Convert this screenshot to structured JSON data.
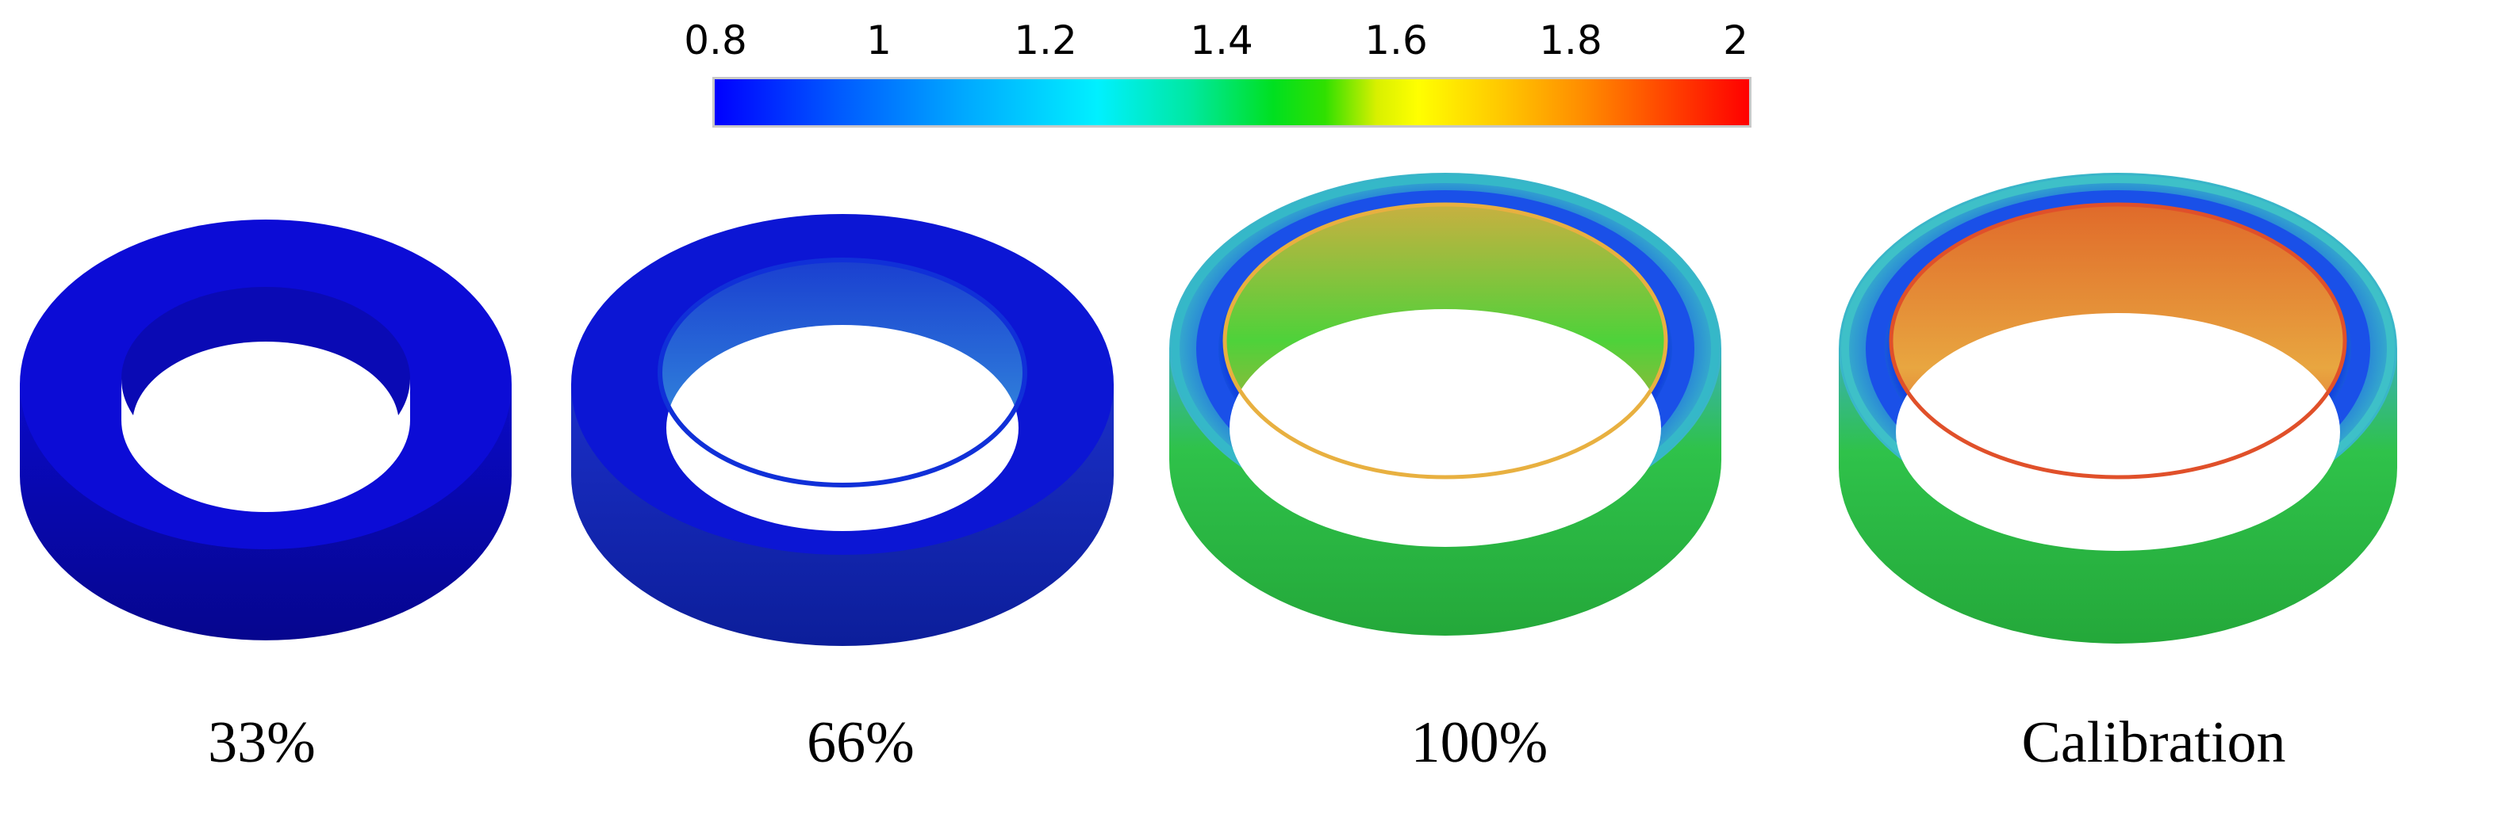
{
  "colorbar": {
    "ticks": [
      "0.8",
      "1",
      "1.2",
      "1.4",
      "1.6",
      "1.8",
      "2"
    ]
  },
  "rings": [
    {
      "label": "33%"
    },
    {
      "label": "66%"
    },
    {
      "label": "100%"
    },
    {
      "label": "Calibration"
    }
  ],
  "colors": {
    "blue": "#0a0ad8",
    "dark_blue": "#0606a0",
    "green": "#2ec43a",
    "cyan": "#3fc0d8",
    "orange": "#e8a03a",
    "red": "#e24a2a"
  }
}
